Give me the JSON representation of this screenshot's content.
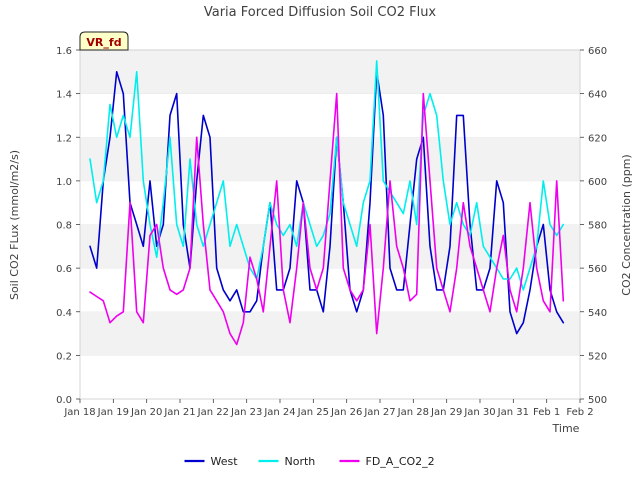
{
  "chart_data": {
    "type": "line",
    "title": "Varia Forced Diffusion Soil CO2 Flux",
    "xlabel": "Time",
    "ylabel": "Soil CO2 FLux (mmol/m2/s)",
    "y2label": "CO2 Concentration (ppm)",
    "site_badge": "VR_fd",
    "ylim": [
      0,
      1.6
    ],
    "y2lim": [
      500,
      660
    ],
    "x_range_days": [
      0,
      15
    ],
    "x_tick_labels": [
      "Jan 18",
      "Jan 19",
      "Jan 20",
      "Jan 21",
      "Jan 22",
      "Jan 23",
      "Jan 24",
      "Jan 25",
      "Jan 26",
      "Jan 27",
      "Jan 28",
      "Jan 29",
      "Jan 30",
      "Jan 31",
      "Feb 1",
      "Feb 2"
    ],
    "y_tick_labels": [
      "0.0",
      "0.2",
      "0.4",
      "0.6",
      "0.8",
      "1.0",
      "1.2",
      "1.4",
      "1.6"
    ],
    "y2_tick_labels": [
      "500",
      "520",
      "540",
      "560",
      "580",
      "600",
      "620",
      "640",
      "660"
    ],
    "grid": "horizontal bands",
    "legend_position": "bottom",
    "series": [
      {
        "name": "West",
        "axis": "left",
        "color": "#0000cc",
        "x": [
          0.3,
          0.5,
          0.7,
          0.9,
          1.1,
          1.3,
          1.5,
          1.7,
          1.9,
          2.1,
          2.3,
          2.5,
          2.7,
          2.9,
          3.1,
          3.3,
          3.5,
          3.7,
          3.9,
          4.1,
          4.3,
          4.5,
          4.7,
          4.9,
          5.1,
          5.3,
          5.5,
          5.7,
          5.9,
          6.1,
          6.3,
          6.5,
          6.7,
          6.9,
          7.1,
          7.3,
          7.5,
          7.7,
          7.9,
          8.1,
          8.3,
          8.5,
          8.7,
          8.9,
          9.1,
          9.3,
          9.5,
          9.7,
          9.9,
          10.1,
          10.3,
          10.5,
          10.7,
          10.9,
          11.1,
          11.3,
          11.5,
          11.7,
          11.9,
          12.1,
          12.3,
          12.5,
          12.7,
          12.9,
          13.1,
          13.3,
          13.5,
          13.7,
          13.9,
          14.1,
          14.3,
          14.5
        ],
        "y": [
          0.7,
          0.6,
          1.0,
          1.2,
          1.5,
          1.4,
          0.9,
          0.8,
          0.7,
          1.0,
          0.7,
          0.8,
          1.3,
          1.4,
          0.8,
          0.6,
          1.0,
          1.3,
          1.2,
          0.6,
          0.5,
          0.45,
          0.5,
          0.4,
          0.4,
          0.45,
          0.7,
          0.9,
          0.5,
          0.5,
          0.6,
          1.0,
          0.9,
          0.5,
          0.5,
          0.4,
          0.7,
          1.2,
          0.9,
          0.5,
          0.4,
          0.5,
          0.9,
          1.5,
          1.3,
          0.6,
          0.5,
          0.5,
          0.8,
          1.1,
          1.2,
          0.7,
          0.5,
          0.5,
          0.7,
          1.3,
          1.3,
          0.8,
          0.5,
          0.5,
          0.6,
          1.0,
          0.9,
          0.4,
          0.3,
          0.35,
          0.5,
          0.7,
          0.8,
          0.5,
          0.4,
          0.35
        ]
      },
      {
        "name": "North",
        "axis": "left",
        "color": "#00eeee",
        "x": [
          0.3,
          0.5,
          0.7,
          0.9,
          1.1,
          1.3,
          1.5,
          1.7,
          1.9,
          2.1,
          2.3,
          2.5,
          2.7,
          2.9,
          3.1,
          3.3,
          3.5,
          3.7,
          3.9,
          4.1,
          4.3,
          4.5,
          4.7,
          4.9,
          5.1,
          5.3,
          5.5,
          5.7,
          5.9,
          6.1,
          6.3,
          6.5,
          6.7,
          6.9,
          7.1,
          7.3,
          7.5,
          7.7,
          7.9,
          8.1,
          8.3,
          8.5,
          8.7,
          8.9,
          9.1,
          9.3,
          9.5,
          9.7,
          9.9,
          10.1,
          10.3,
          10.5,
          10.7,
          10.9,
          11.1,
          11.3,
          11.5,
          11.7,
          11.9,
          12.1,
          12.3,
          12.5,
          12.7,
          12.9,
          13.1,
          13.3,
          13.5,
          13.7,
          13.9,
          14.1,
          14.3,
          14.5
        ],
        "y": [
          1.1,
          0.9,
          1.0,
          1.35,
          1.2,
          1.3,
          1.2,
          1.5,
          1.0,
          0.8,
          0.65,
          0.9,
          1.2,
          0.8,
          0.7,
          1.1,
          0.8,
          0.7,
          0.8,
          0.9,
          1.0,
          0.7,
          0.8,
          0.7,
          0.6,
          0.55,
          0.7,
          0.9,
          0.8,
          0.75,
          0.8,
          0.7,
          0.9,
          0.8,
          0.7,
          0.75,
          0.85,
          1.2,
          0.9,
          0.8,
          0.7,
          0.9,
          1.0,
          1.55,
          1.0,
          0.95,
          0.9,
          0.85,
          1.0,
          0.8,
          1.3,
          1.4,
          1.3,
          1.0,
          0.8,
          0.9,
          0.8,
          0.75,
          0.9,
          0.7,
          0.65,
          0.6,
          0.55,
          0.55,
          0.6,
          0.5,
          0.6,
          0.7,
          1.0,
          0.8,
          0.75,
          0.8
        ]
      },
      {
        "name": "FD_A_CO2_2",
        "axis": "right",
        "color": "#ee00ee",
        "x": [
          0.3,
          0.5,
          0.7,
          0.9,
          1.1,
          1.3,
          1.5,
          1.7,
          1.9,
          2.1,
          2.3,
          2.5,
          2.7,
          2.9,
          3.1,
          3.3,
          3.5,
          3.7,
          3.9,
          4.1,
          4.3,
          4.5,
          4.7,
          4.9,
          5.1,
          5.3,
          5.5,
          5.7,
          5.9,
          6.1,
          6.3,
          6.5,
          6.7,
          6.9,
          7.1,
          7.3,
          7.5,
          7.7,
          7.9,
          8.1,
          8.3,
          8.5,
          8.7,
          8.9,
          9.1,
          9.3,
          9.5,
          9.7,
          9.9,
          10.1,
          10.3,
          10.5,
          10.7,
          10.9,
          11.1,
          11.3,
          11.5,
          11.7,
          11.9,
          12.1,
          12.3,
          12.5,
          12.7,
          12.9,
          13.1,
          13.3,
          13.5,
          13.7,
          13.9,
          14.1,
          14.3,
          14.5
        ],
        "y": [
          549,
          547,
          545,
          535,
          538,
          540,
          590,
          540,
          535,
          575,
          580,
          560,
          550,
          548,
          550,
          560,
          620,
          580,
          550,
          545,
          540,
          530,
          525,
          535,
          565,
          555,
          540,
          570,
          600,
          550,
          535,
          560,
          590,
          560,
          550,
          560,
          600,
          640,
          560,
          550,
          545,
          550,
          580,
          530,
          560,
          600,
          570,
          560,
          545,
          548,
          640,
          600,
          560,
          550,
          540,
          560,
          590,
          570,
          560,
          550,
          540,
          560,
          575,
          550,
          540,
          560,
          590,
          560,
          545,
          540,
          600,
          545
        ]
      }
    ]
  },
  "legend": {
    "items": [
      {
        "label": "West",
        "color": "#0000cc"
      },
      {
        "label": "North",
        "color": "#00eeee"
      },
      {
        "label": "FD_A_CO2_2",
        "color": "#ee00ee"
      }
    ]
  }
}
